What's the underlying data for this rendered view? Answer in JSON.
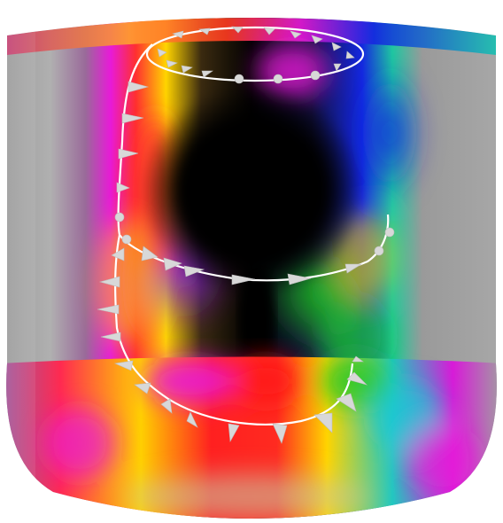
{
  "scene": {
    "subject": "cylindrical-vector-field-visualization",
    "colors": {
      "background": "#ffffff",
      "core": "#000000",
      "gray": "#9a9a9a",
      "red": "#ff1a1a",
      "yellow": "#ffd400",
      "green": "#1ec81e",
      "cyan": "#18c8d8",
      "blue": "#1428e0",
      "magenta": "#e81ad8",
      "purple": "#7a18d8",
      "arrow": "#d8d8d8",
      "path": "#ffffff"
    },
    "icons": [
      "arrow-cone-icon",
      "sphere-marker-icon"
    ]
  }
}
